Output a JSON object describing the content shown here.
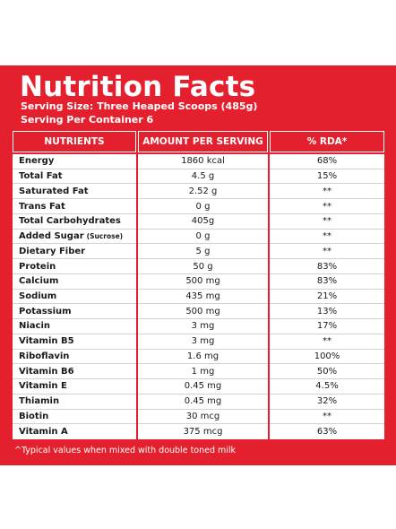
{
  "title": "Nutrition Facts",
  "serving_size": "Serving Size: Three Heaped Scoops (485g)",
  "servings_per_container": "Serving Per Container 6",
  "headers": {
    "nutrients": "NUTRIENTS",
    "amount": "AMOUNT PER SERVING",
    "rda": "% RDA*"
  },
  "rows": [
    {
      "name": "Energy",
      "qualifier": "",
      "amount": "1860 kcal",
      "rda": "68%"
    },
    {
      "name": "Total Fat",
      "qualifier": "",
      "amount": "4.5 g",
      "rda": "15%"
    },
    {
      "name": "Saturated Fat",
      "qualifier": "",
      "amount": "2.52 g",
      "rda": "**"
    },
    {
      "name": "Trans Fat",
      "qualifier": "",
      "amount": "0 g",
      "rda": "**"
    },
    {
      "name": "Total Carbohydrates",
      "qualifier": "",
      "amount": "405g",
      "rda": "**"
    },
    {
      "name": "Added Sugar",
      "qualifier": "(Sucrose)",
      "amount": "0 g",
      "rda": "**"
    },
    {
      "name": "Dietary Fiber",
      "qualifier": "",
      "amount": "5 g",
      "rda": "**"
    },
    {
      "name": "Protein",
      "qualifier": "",
      "amount": "50 g",
      "rda": "83%"
    },
    {
      "name": "Calcium",
      "qualifier": "",
      "amount": "500 mg",
      "rda": "83%"
    },
    {
      "name": "Sodium",
      "qualifier": "",
      "amount": "435 mg",
      "rda": "21%"
    },
    {
      "name": "Potassium",
      "qualifier": "",
      "amount": "500 mg",
      "rda": "13%"
    },
    {
      "name": "Niacin",
      "qualifier": "",
      "amount": "3 mg",
      "rda": "17%"
    },
    {
      "name": "Vitamin B5",
      "qualifier": "",
      "amount": "3 mg",
      "rda": "**"
    },
    {
      "name": "Riboflavin",
      "qualifier": "",
      "amount": "1.6 mg",
      "rda": "100%"
    },
    {
      "name": "Vitamin B6",
      "qualifier": "",
      "amount": "1 mg",
      "rda": "50%"
    },
    {
      "name": "Vitamin E",
      "qualifier": "",
      "amount": "0.45 mg",
      "rda": "4.5%"
    },
    {
      "name": "Thiamin",
      "qualifier": "",
      "amount": "0.45 mg",
      "rda": "32%"
    },
    {
      "name": "Biotin",
      "qualifier": "",
      "amount": "30 mcg",
      "rda": "**"
    },
    {
      "name": "Vitamin A",
      "qualifier": "",
      "amount": "375 mcg",
      "rda": "63%"
    }
  ],
  "footnote": "^Typical values when mixed with double toned milk",
  "colors": {
    "brand_red": "#e5202e",
    "row_text": "#1a1a1a",
    "divider": "#d2d2d2"
  }
}
